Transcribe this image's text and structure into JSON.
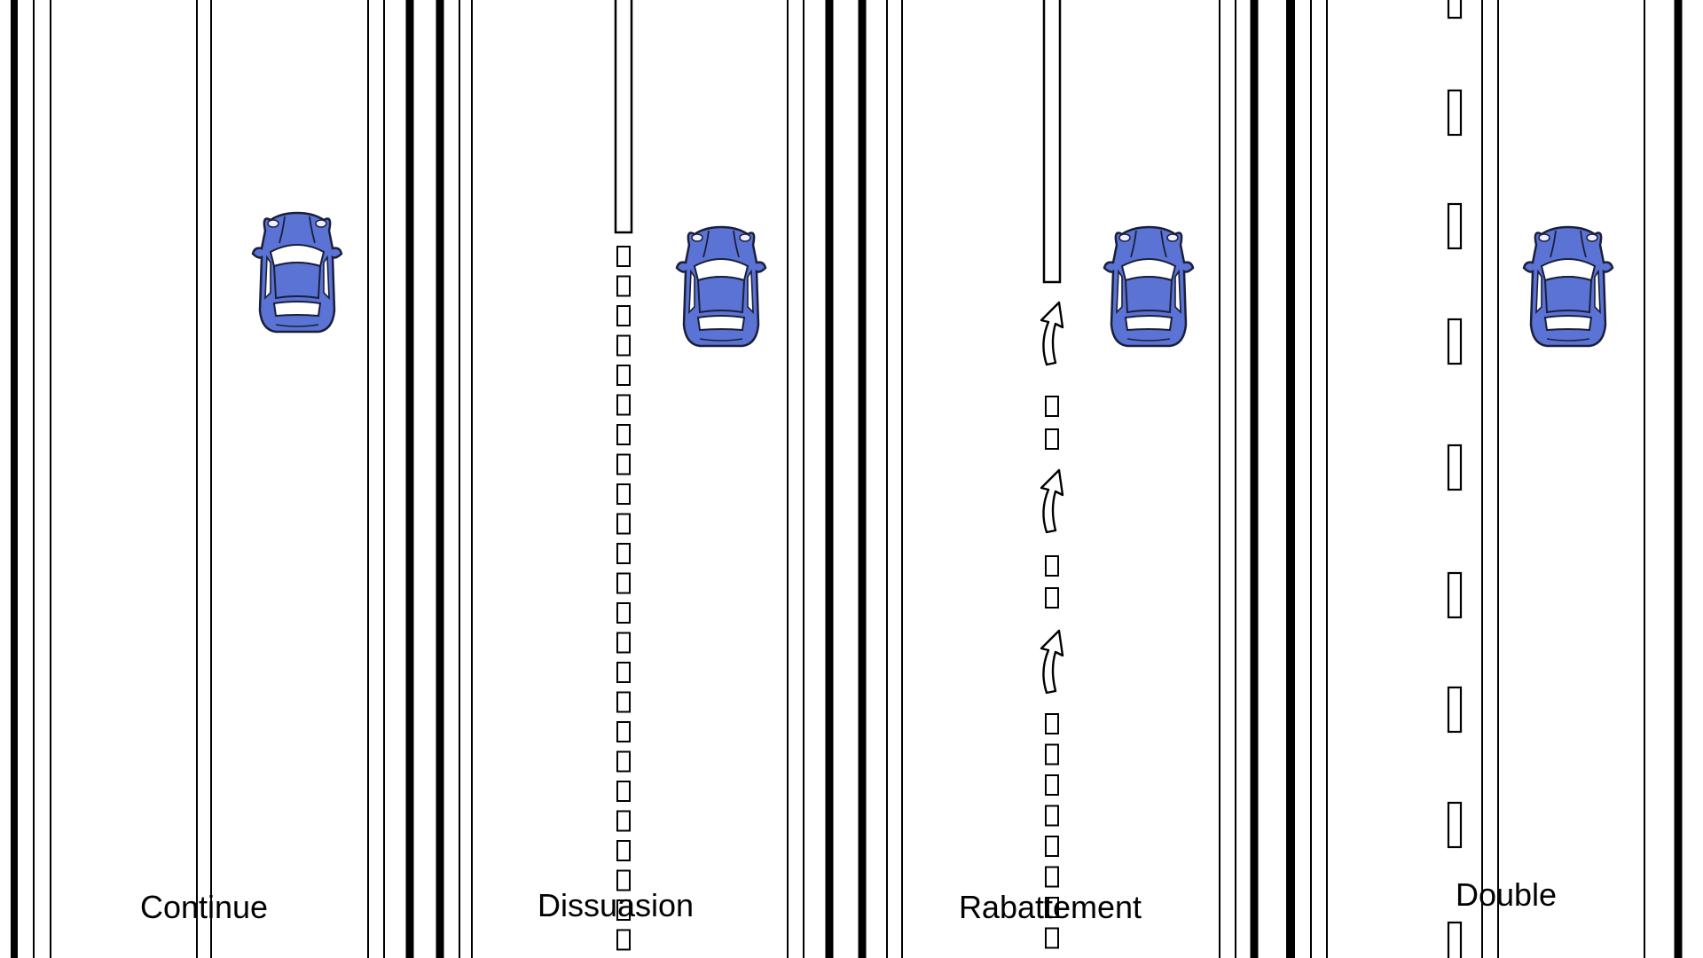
{
  "colors": {
    "background": "#ffffff",
    "line": "#000000",
    "car_body": "#5b73d4",
    "car_outline": "#1a1f3a",
    "car_glass": "#ffffff"
  },
  "icons": [
    "car-icon",
    "return-arrow-icon"
  ],
  "panels": [
    {
      "id": "continue",
      "label": "Continue",
      "marking": "continuous-line"
    },
    {
      "id": "dissuasion",
      "label": "Dissuasion",
      "marking": "continuous-then-short-dashes"
    },
    {
      "id": "rabattement",
      "label": "Rabattement",
      "marking": "continuous-then-arrows-and-dashes"
    },
    {
      "id": "double",
      "label": "Double",
      "marking": "long-dashes"
    }
  ]
}
